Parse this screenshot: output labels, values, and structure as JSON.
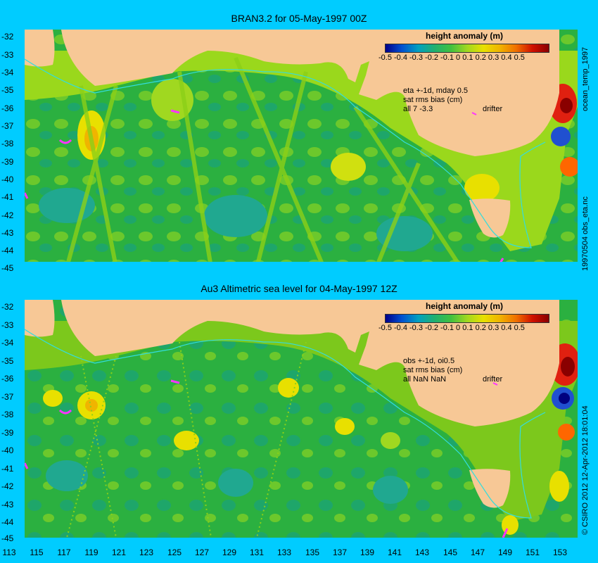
{
  "panels": [
    {
      "title": "BRAN3.2 for 05-May-1997 00Z",
      "notes": [
        "eta +-1d, mday 0.5",
        "sat rms bias (cm)",
        "all 7 -3.3"
      ],
      "side_label": "ocean_temp_1997",
      "colorbar_label": "height anomaly (m)"
    },
    {
      "title": "Au3 Altimetric sea level  for 04-May-1997 12Z",
      "notes": [
        "obs +-1d, oi0.5",
        "sat rms bias (cm)",
        "all NaN NaN"
      ],
      "side_label": "",
      "colorbar_label": "height anomaly (m)"
    }
  ],
  "colorbar_ticks": "-0.5 -0.4 -0.3 -0.2 -0.1  0  0.1  0.2  0.3  0.4  0.5",
  "drifter_label": "drifter",
  "y_ticks": [
    "-32",
    "-33",
    "-34",
    "-35",
    "-36",
    "-37",
    "-38",
    "-39",
    "-40",
    "-41",
    "-42",
    "-43",
    "-44",
    "-45"
  ],
  "x_ticks": [
    "113",
    "115",
    "117",
    "119",
    "121",
    "123",
    "125",
    "127",
    "129",
    "131",
    "133",
    "135",
    "137",
    "139",
    "141",
    "143",
    "145",
    "147",
    "149",
    "151",
    "153"
  ],
  "right_labels": {
    "top": "19970504 obs_eta.nc",
    "bottom": "© CSIRO  2012   12-Apr-2012 18:01:04"
  },
  "colors": {
    "background": "#00ccff",
    "land": "#f7c896",
    "ocean": "#2bb040",
    "drifter": "#ff33ff",
    "isobath": "#33dddd"
  }
}
